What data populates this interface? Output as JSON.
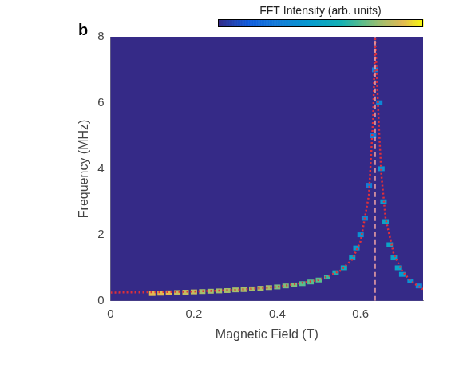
{
  "chart_data": {
    "type": "heatmap",
    "panel_label": "b",
    "x_label": "Magnetic Field (T)",
    "y_label": "Frequency (MHz)",
    "xlim": [
      0,
      0.75
    ],
    "xticks": [
      0,
      0.2,
      0.4,
      0.6
    ],
    "ylim": [
      0,
      8
    ],
    "yticks": [
      0,
      2,
      4,
      6,
      8
    ],
    "grid": false,
    "colorbar": {
      "title": "FFT Intensity (arb. units)",
      "range": [
        0,
        1
      ]
    },
    "cells": [
      {
        "x": 0.1,
        "y": 0.22,
        "value": 0.9
      },
      {
        "x": 0.12,
        "y": 0.23,
        "value": 0.9
      },
      {
        "x": 0.14,
        "y": 0.24,
        "value": 0.9
      },
      {
        "x": 0.16,
        "y": 0.25,
        "value": 0.85
      },
      {
        "x": 0.18,
        "y": 0.26,
        "value": 0.85
      },
      {
        "x": 0.2,
        "y": 0.27,
        "value": 0.85
      },
      {
        "x": 0.22,
        "y": 0.28,
        "value": 0.8
      },
      {
        "x": 0.24,
        "y": 0.29,
        "value": 0.8
      },
      {
        "x": 0.26,
        "y": 0.3,
        "value": 0.8
      },
      {
        "x": 0.28,
        "y": 0.31,
        "value": 0.8
      },
      {
        "x": 0.3,
        "y": 0.33,
        "value": 0.8
      },
      {
        "x": 0.32,
        "y": 0.34,
        "value": 0.8
      },
      {
        "x": 0.34,
        "y": 0.36,
        "value": 0.8
      },
      {
        "x": 0.36,
        "y": 0.38,
        "value": 0.8
      },
      {
        "x": 0.38,
        "y": 0.4,
        "value": 0.8
      },
      {
        "x": 0.4,
        "y": 0.42,
        "value": 0.75
      },
      {
        "x": 0.42,
        "y": 0.45,
        "value": 0.75
      },
      {
        "x": 0.44,
        "y": 0.48,
        "value": 0.75
      },
      {
        "x": 0.46,
        "y": 0.52,
        "value": 0.7
      },
      {
        "x": 0.48,
        "y": 0.57,
        "value": 0.7
      },
      {
        "x": 0.5,
        "y": 0.63,
        "value": 0.7
      },
      {
        "x": 0.52,
        "y": 0.72,
        "value": 0.65
      },
      {
        "x": 0.54,
        "y": 0.85,
        "value": 0.6
      },
      {
        "x": 0.56,
        "y": 1.0,
        "value": 0.55
      },
      {
        "x": 0.58,
        "y": 1.3,
        "value": 0.5
      },
      {
        "x": 0.59,
        "y": 1.6,
        "value": 0.45
      },
      {
        "x": 0.6,
        "y": 2.0,
        "value": 0.4
      },
      {
        "x": 0.61,
        "y": 2.5,
        "value": 0.35
      },
      {
        "x": 0.62,
        "y": 3.5,
        "value": 0.3
      },
      {
        "x": 0.63,
        "y": 5.0,
        "value": 0.3
      },
      {
        "x": 0.635,
        "y": 7.0,
        "value": 0.3
      },
      {
        "x": 0.645,
        "y": 6.0,
        "value": 0.35
      },
      {
        "x": 0.65,
        "y": 4.0,
        "value": 0.4
      },
      {
        "x": 0.655,
        "y": 3.0,
        "value": 0.45
      },
      {
        "x": 0.66,
        "y": 2.4,
        "value": 0.5
      },
      {
        "x": 0.67,
        "y": 1.7,
        "value": 0.5
      },
      {
        "x": 0.68,
        "y": 1.3,
        "value": 0.5
      },
      {
        "x": 0.69,
        "y": 1.0,
        "value": 0.5
      },
      {
        "x": 0.7,
        "y": 0.8,
        "value": 0.45
      },
      {
        "x": 0.72,
        "y": 0.6,
        "value": 0.4
      },
      {
        "x": 0.74,
        "y": 0.45,
        "value": 0.35
      }
    ],
    "series": [
      {
        "type": "line",
        "color": "#f4a6a6",
        "line_style": "dashed",
        "x": [
          0.635,
          0.635
        ],
        "values": [
          0,
          8
        ]
      },
      {
        "type": "line",
        "color": "#e0303a",
        "line_style": "dotted",
        "x": [
          0,
          0.1,
          0.2,
          0.3,
          0.4,
          0.5,
          0.55,
          0.58,
          0.6,
          0.62,
          0.63,
          0.635,
          0.64,
          0.645,
          0.65,
          0.66,
          0.68,
          0.7,
          0.72,
          0.75
        ],
        "values": [
          0.25,
          0.26,
          0.28,
          0.33,
          0.42,
          0.63,
          0.9,
          1.25,
          1.8,
          3.2,
          5.5,
          8,
          6.5,
          5,
          3.8,
          2.5,
          1.4,
          0.9,
          0.6,
          0.35
        ]
      }
    ]
  }
}
